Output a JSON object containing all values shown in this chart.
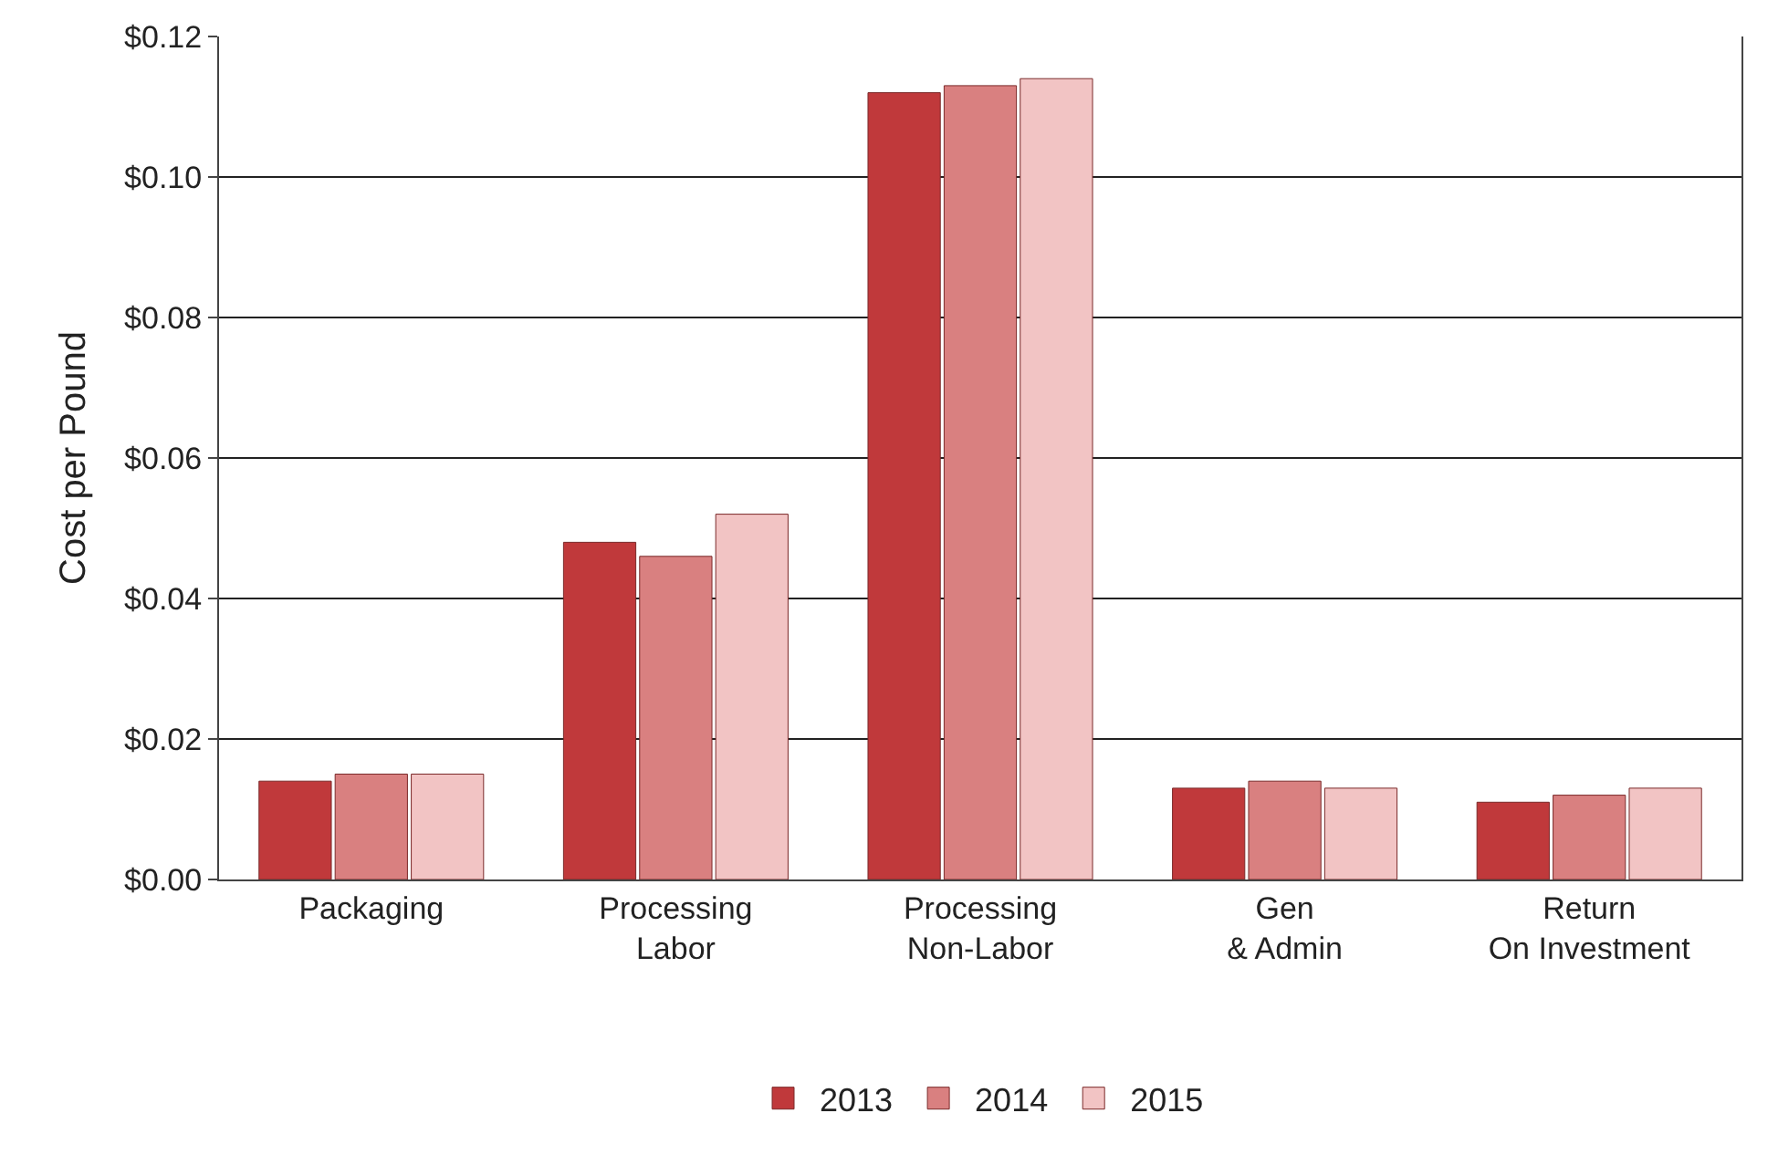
{
  "chart_data": {
    "type": "bar",
    "ylabel": "Cost per Pound",
    "categories": [
      "Packaging",
      "Processing Labor",
      "Processing Non-Labor",
      "Gen & Admin",
      "Return On Investment"
    ],
    "series": [
      {
        "name": "2013",
        "color": "#c0393b",
        "values": [
          0.014,
          0.048,
          0.112,
          0.013,
          0.011
        ]
      },
      {
        "name": "2014",
        "color": "#d98080",
        "values": [
          0.015,
          0.046,
          0.113,
          0.014,
          0.012
        ]
      },
      {
        "name": "2015",
        "color": "#f2c4c4",
        "values": [
          0.015,
          0.052,
          0.114,
          0.013,
          0.013
        ]
      }
    ],
    "ylim": [
      0,
      0.12
    ],
    "yticks": [
      {
        "value": 0,
        "label": "$0.00"
      },
      {
        "value": 0.02,
        "label": "$0.02"
      },
      {
        "value": 0.04,
        "label": "$0.04"
      },
      {
        "value": 0.06,
        "label": "$0.06"
      },
      {
        "value": 0.08,
        "label": "$0.08"
      },
      {
        "value": 0.1,
        "label": "$0.10"
      },
      {
        "value": 0.12,
        "label": "$0.12"
      }
    ],
    "grid": "y",
    "legend": "bottom"
  }
}
